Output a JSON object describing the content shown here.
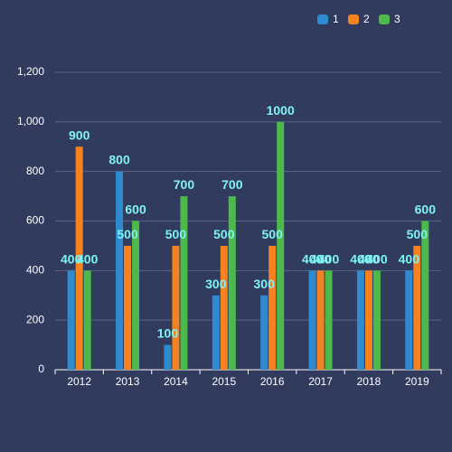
{
  "chart_data": {
    "type": "bar",
    "categories": [
      "2012",
      "2013",
      "2014",
      "2015",
      "2016",
      "2017",
      "2018",
      "2019"
    ],
    "series": [
      {
        "name": "1",
        "color": "#2e8bd0",
        "values": [
          400,
          800,
          100,
          300,
          300,
          400,
          400,
          400
        ]
      },
      {
        "name": "2",
        "color": "#f5821f",
        "values": [
          900,
          500,
          500,
          500,
          500,
          400,
          400,
          500
        ]
      },
      {
        "name": "3",
        "color": "#4cb94a",
        "values": [
          400,
          600,
          700,
          700,
          1000,
          400,
          400,
          600
        ]
      }
    ],
    "ylim": [
      0,
      1200
    ],
    "yticks": [
      {
        "value": 0,
        "label": "0"
      },
      {
        "value": 200,
        "label": "200"
      },
      {
        "value": 400,
        "label": "400"
      },
      {
        "value": 600,
        "label": "600"
      },
      {
        "value": 800,
        "label": "800"
      },
      {
        "value": 1000,
        "label": "1,000"
      },
      {
        "value": 1200,
        "label": "1,200"
      }
    ],
    "grid": true,
    "legend_position": "top-right",
    "label_color": "#7ff3f4"
  }
}
